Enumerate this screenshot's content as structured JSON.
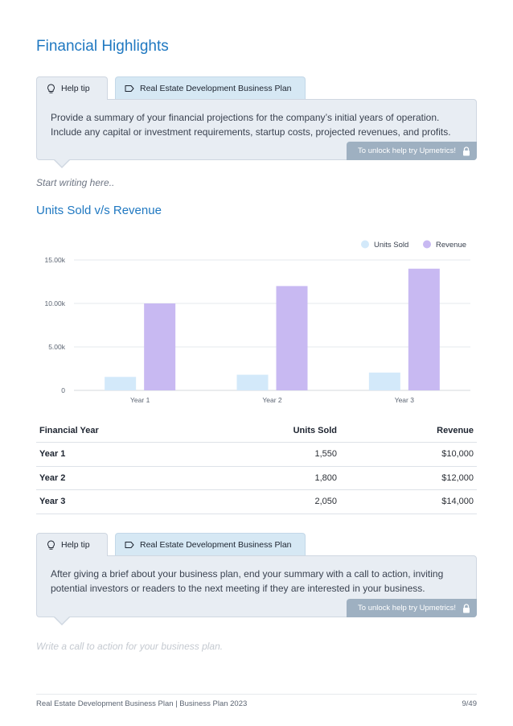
{
  "page_title": "Financial Highlights",
  "tip1": {
    "help_tab": "Help tip",
    "plan_tab": "Real Estate Development Business Plan",
    "text": "Provide a summary of your financial projections for the company’s initial years of operation. Include any capital or investment requirements, startup costs, projected revenues, and profits.",
    "unlock": "To unlock help try Upmetrics!"
  },
  "placeholder1": "Start writing here..",
  "chart_title": "Units Sold v/s Revenue",
  "chart_data": {
    "type": "bar",
    "title": "Units Sold v/s Revenue",
    "categories": [
      "Year 1",
      "Year 2",
      "Year 3"
    ],
    "series": [
      {
        "name": "Units Sold",
        "values": [
          1550,
          1800,
          2050
        ],
        "color": "#d3e9fa"
      },
      {
        "name": "Revenue",
        "values": [
          10000,
          12000,
          14000
        ],
        "color": "#c8b9f2"
      }
    ],
    "yticks": [
      0,
      5000,
      10000,
      15000
    ],
    "ytick_labels": [
      "0",
      "5.00k",
      "10.00k",
      "15.00k"
    ],
    "ylim": [
      0,
      15000
    ],
    "legend": "top-right",
    "grid": true
  },
  "table": {
    "headers": [
      "Financial Year",
      "Units Sold",
      "Revenue"
    ],
    "rows": [
      [
        "Year 1",
        "1,550",
        "$10,000"
      ],
      [
        "Year 2",
        "1,800",
        "$12,000"
      ],
      [
        "Year 3",
        "2,050",
        "$14,000"
      ]
    ]
  },
  "tip2": {
    "help_tab": "Help tip",
    "plan_tab": "Real Estate Development Business Plan",
    "text": "After giving a brief about your business plan, end your summary with a call to action, inviting potential investors or readers to the next meeting if they are interested in your business.",
    "unlock": "To unlock help try Upmetrics!"
  },
  "placeholder2": "Write a call to action for your business plan.",
  "footer": {
    "left": "Real Estate Development Business Plan | Business Plan 2023",
    "right": "9/49"
  },
  "colors": {
    "accent": "#1f78c1",
    "tip_bg": "#e8edf3",
    "plan_tab_bg": "#d6e8f4",
    "unlock_bg": "#9eb0c1"
  }
}
